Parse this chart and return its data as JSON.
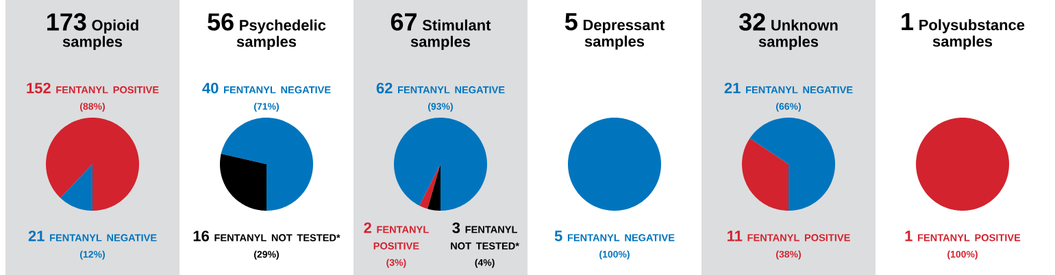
{
  "chart_data": [
    {
      "type": "pie",
      "title": "173",
      "subtitle": "Opioid samples",
      "categories": [
        "FENTANYL POSITIVE",
        "FENTANYL NEGATIVE"
      ],
      "values": [
        152,
        21
      ],
      "value_labels": [
        "152",
        "21"
      ],
      "colors": [
        "#d3232e",
        "#0075be"
      ],
      "annotations": [
        "(88%)",
        "(12%)"
      ]
    },
    {
      "type": "pie",
      "title": "56",
      "subtitle": "Psychedelic samples",
      "categories": [
        "FENTANYL NEGATIVE",
        "FENTANYL NOT TESTED*"
      ],
      "values": [
        40,
        16
      ],
      "value_labels": [
        "40",
        "16"
      ],
      "colors": [
        "#0075be",
        "#000000"
      ],
      "annotations": [
        "(71%)",
        "(29%)"
      ]
    },
    {
      "type": "pie",
      "title": "67",
      "subtitle": "Stimulant samples",
      "categories": [
        "FENTANYL NEGATIVE",
        "FENTANYL POSITIVE",
        "FENTANYL NOT TESTED*"
      ],
      "values": [
        62,
        2,
        3
      ],
      "value_labels": [
        "62",
        "2",
        "3"
      ],
      "colors": [
        "#0075be",
        "#d3232e",
        "#000000"
      ],
      "annotations": [
        "(93%)",
        "(3%)",
        "(4%)"
      ]
    },
    {
      "type": "pie",
      "title": "5",
      "subtitle": "Depressant samples",
      "categories": [
        "FENTANYL NEGATIVE"
      ],
      "values": [
        5
      ],
      "value_labels": [
        "5"
      ],
      "colors": [
        "#0075be"
      ],
      "annotations": [
        "(100%)"
      ]
    },
    {
      "type": "pie",
      "title": "32",
      "subtitle": "Unknown samples",
      "categories": [
        "FENTANYL NEGATIVE",
        "FENTANYL POSITIVE"
      ],
      "values": [
        21,
        11
      ],
      "value_labels": [
        "21",
        "11"
      ],
      "colors": [
        "#0075be",
        "#d3232e"
      ],
      "annotations": [
        "(66%)",
        "(38%)"
      ]
    },
    {
      "type": "pie",
      "title": "1",
      "subtitle": "Polysubstance samples",
      "categories": [
        "FENTANYL POSITIVE"
      ],
      "values": [
        1
      ],
      "value_labels": [
        "1"
      ],
      "colors": [
        "#d3232e"
      ],
      "annotations": [
        "(100%)"
      ]
    }
  ]
}
